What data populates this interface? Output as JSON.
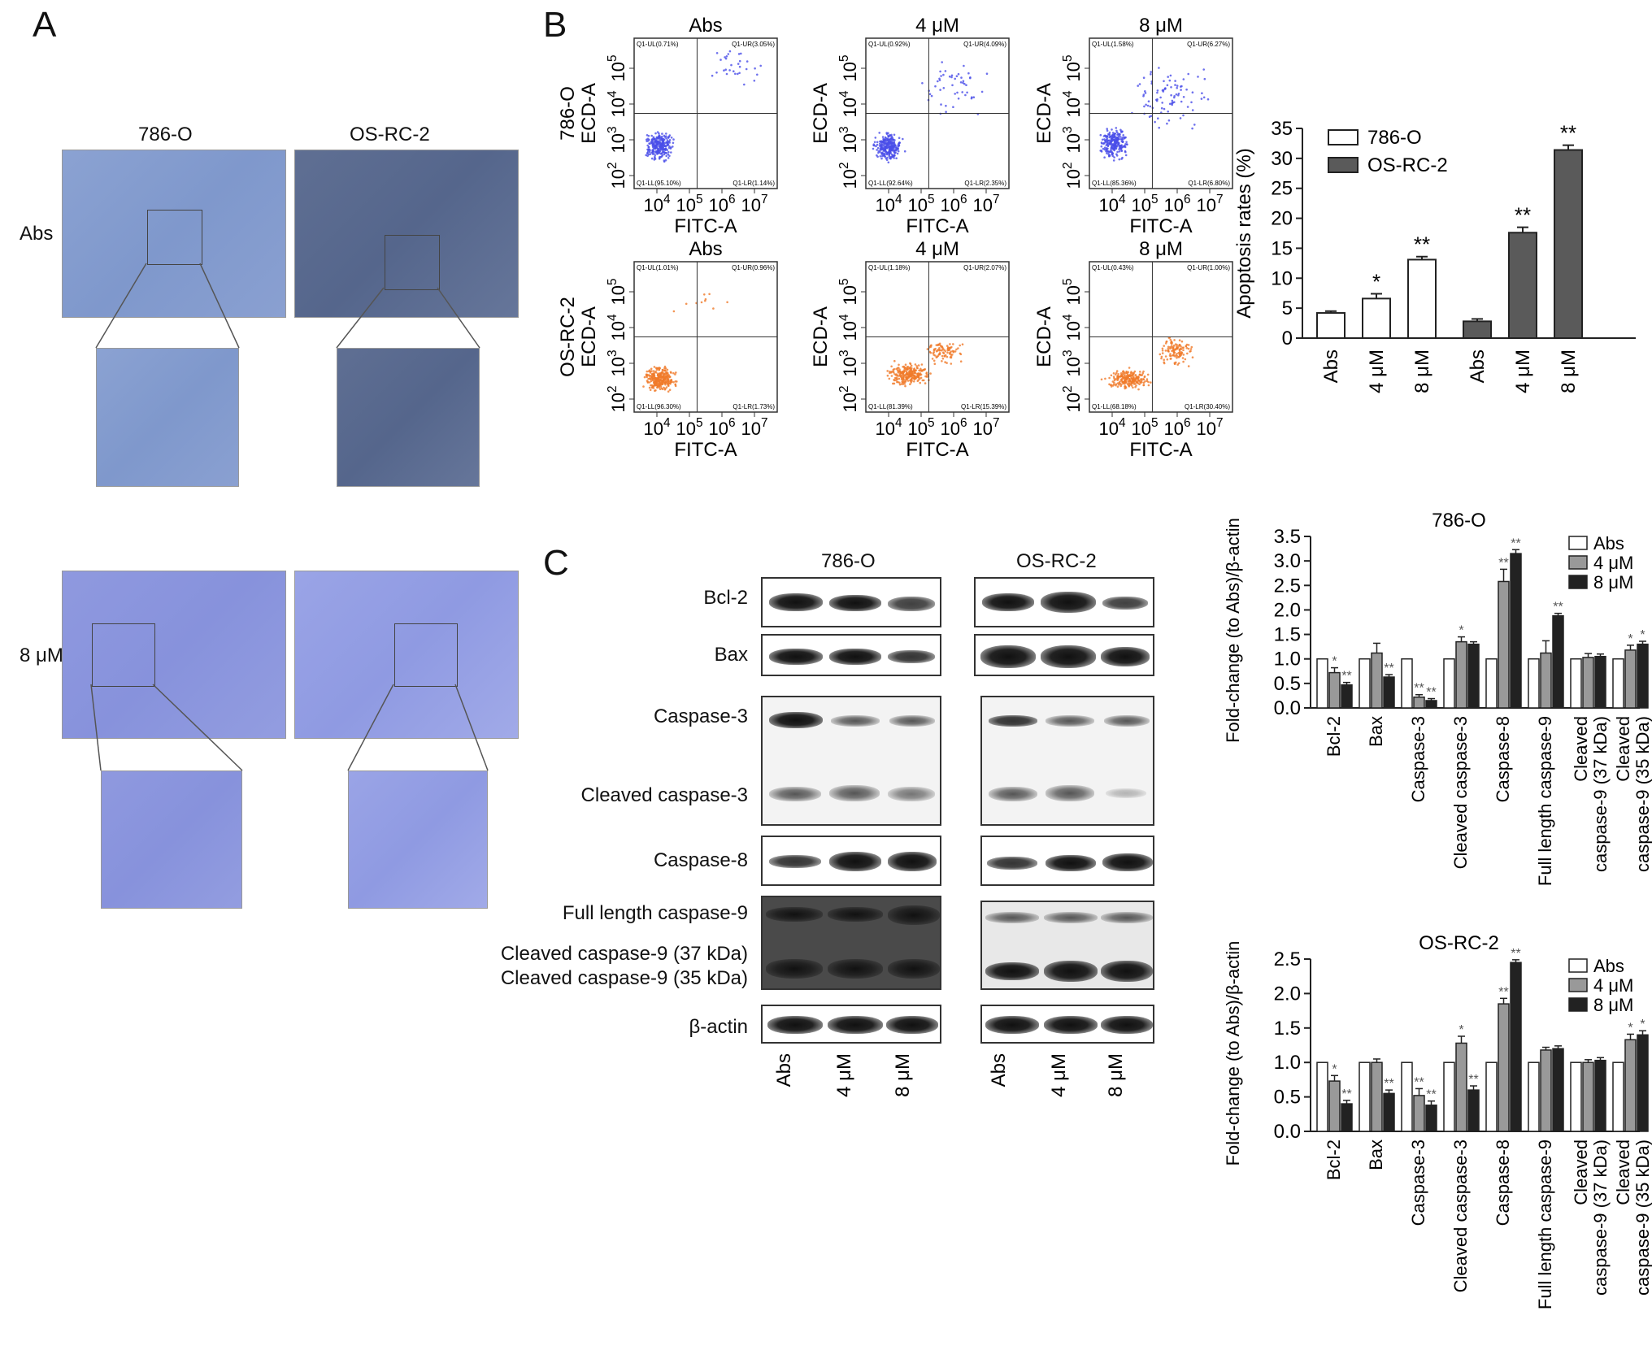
{
  "panels": {
    "a": "A",
    "b": "B",
    "c": "C"
  },
  "panel_a": {
    "col_786": "786-O",
    "col_osrc": "OS-RC-2",
    "row_abs": "Abs",
    "row_8um": "8 μM"
  },
  "flow": {
    "col_titles": [
      "Abs",
      "4 μM",
      "8 μM"
    ],
    "row_labels": [
      "786-O",
      "OS-RC-2"
    ],
    "y_axis_label": "ECD-A",
    "x_axis_label": "FITC-A",
    "x_ticks": [
      "10^4",
      "10^5",
      "10^6",
      "10^7"
    ],
    "y_ticks": [
      "10^2",
      "10^3",
      "10^4",
      "10^5"
    ],
    "plots": [
      {
        "row": 0,
        "col": 0,
        "color": "#4a4ee8",
        "UL": "Q1-UL(0.71%)",
        "UR": "Q1-UR(3.05%)",
        "LL": "Q1-LL(95.10%)",
        "LR": "Q1-LR(1.14%)"
      },
      {
        "row": 0,
        "col": 1,
        "color": "#4a4ee8",
        "UL": "Q1-UL(0.92%)",
        "UR": "Q1-UR(4.09%)",
        "LL": "Q1-LL(92.64%)",
        "LR": "Q1-LR(2.35%)"
      },
      {
        "row": 0,
        "col": 2,
        "color": "#4a4ee8",
        "UL": "Q1-UL(1.58%)",
        "UR": "Q1-UR(6.27%)",
        "LL": "Q1-LL(85.36%)",
        "LR": "Q1-LR(6.80%)"
      },
      {
        "row": 1,
        "col": 0,
        "color": "#f07a2a",
        "UL": "Q1-UL(1.01%)",
        "UR": "Q1-UR(0.96%)",
        "LL": "Q1-LL(96.30%)",
        "LR": "Q1-LR(1.73%)"
      },
      {
        "row": 1,
        "col": 1,
        "color": "#f07a2a",
        "UL": "Q1-UL(1.18%)",
        "UR": "Q1-UR(2.07%)",
        "LL": "Q1-LL(81.39%)",
        "LR": "Q1-LR(15.39%)"
      },
      {
        "row": 1,
        "col": 2,
        "color": "#f07a2a",
        "UL": "Q1-UL(0.43%)",
        "UR": "Q1-UR(1.00%)",
        "LL": "Q1-LL(68.18%)",
        "LR": "Q1-LR(30.40%)"
      }
    ]
  },
  "blot": {
    "group_786": "786-O",
    "group_osrc": "OS-RC-2",
    "labels": [
      "Bcl-2",
      "Bax",
      "Caspase-3",
      "Cleaved caspase-3",
      "Caspase-8",
      "Full length caspase-9",
      "Cleaved caspase-9 (37 kDa)",
      "Cleaved caspase-9 (35 kDa)",
      "β-actin"
    ],
    "lanes": [
      "Abs",
      "4 μM",
      "8 μM"
    ]
  },
  "chart_data": [
    {
      "type": "bar",
      "ylabel": "Apoptosis rates (%)",
      "ylim": [
        0,
        35
      ],
      "yticks": [
        0,
        5,
        10,
        15,
        20,
        25,
        30,
        35
      ],
      "groups": [
        {
          "name": "786-O",
          "color": "#ffffff",
          "categories": [
            "Abs",
            "4 μM",
            "8 μM"
          ],
          "values": [
            4.2,
            6.6,
            13.1
          ],
          "errors": [
            0.3,
            0.8,
            0.5
          ],
          "sig": [
            "",
            "*",
            "**"
          ]
        },
        {
          "name": "OS-RC-2",
          "color": "#5a5a5a",
          "categories": [
            "Abs",
            "4 μM",
            "8 μM"
          ],
          "values": [
            2.8,
            17.6,
            31.4
          ],
          "errors": [
            0.4,
            0.9,
            0.8
          ],
          "sig": [
            "",
            "**",
            "**"
          ]
        }
      ],
      "legend": [
        "786-O",
        "OS-RC-2"
      ],
      "legend_position": "top-left"
    },
    {
      "type": "bar",
      "title": "786-O",
      "ylabel": "Fold-change (to Abs)/β-actin",
      "ylim": [
        0,
        3.5
      ],
      "yticks": [
        "0.0",
        "0.5",
        "1.0",
        "1.5",
        "2.0",
        "2.5",
        "3.0",
        "3.5"
      ],
      "categories": [
        "Bcl-2",
        "Bax",
        "Caspase-3",
        "Cleaved caspase-3",
        "Caspase-8",
        "Full length caspase-9",
        "Cleaved caspase-9 (37 kDa)",
        "Cleaved caspase-9 (35 kDa)"
      ],
      "series": [
        {
          "name": "Abs",
          "color": "#ffffff",
          "values": [
            1.0,
            1.0,
            1.0,
            1.0,
            1.0,
            1.0,
            1.0,
            1.0
          ],
          "errors": [
            0,
            0,
            0,
            0,
            0,
            0,
            0,
            0
          ],
          "sig": [
            "",
            "",
            "",
            "",
            "",
            "",
            "",
            ""
          ]
        },
        {
          "name": "4 μM",
          "color": "#999999",
          "values": [
            0.72,
            1.12,
            0.22,
            1.35,
            2.58,
            1.12,
            1.03,
            1.18
          ],
          "errors": [
            0.1,
            0.2,
            0.05,
            0.1,
            0.25,
            0.25,
            0.08,
            0.1
          ],
          "sig": [
            "*",
            "",
            "**",
            "*",
            "**",
            "",
            "",
            "*"
          ]
        },
        {
          "name": "8 μM",
          "color": "#222222",
          "values": [
            0.47,
            0.63,
            0.15,
            1.3,
            3.15,
            1.88,
            1.05,
            1.3
          ],
          "errors": [
            0.05,
            0.05,
            0.04,
            0.05,
            0.08,
            0.05,
            0.05,
            0.06
          ],
          "sig": [
            "**",
            "**",
            "**",
            "",
            "**",
            "**",
            "",
            "*"
          ]
        }
      ],
      "legend_position": "top-right"
    },
    {
      "type": "bar",
      "title": "OS-RC-2",
      "ylabel": "Fold-change (to Abs)/β-actin",
      "ylim": [
        0,
        2.5
      ],
      "yticks": [
        "0.0",
        "0.5",
        "1.0",
        "1.5",
        "2.0",
        "2.5"
      ],
      "categories": [
        "Bcl-2",
        "Bax",
        "Caspase-3",
        "Cleaved caspase-3",
        "Caspase-8",
        "Full length caspase-9",
        "Cleaved caspase-9 (37 kDa)",
        "Cleaved caspase-9 (35 kDa)"
      ],
      "series": [
        {
          "name": "Abs",
          "color": "#ffffff",
          "values": [
            1.0,
            1.0,
            1.0,
            1.0,
            1.0,
            1.0,
            1.0,
            1.0
          ],
          "errors": [
            0,
            0,
            0,
            0,
            0,
            0,
            0,
            0
          ],
          "sig": [
            "",
            "",
            "",
            "",
            "",
            "",
            "",
            ""
          ]
        },
        {
          "name": "4 μM",
          "color": "#999999",
          "values": [
            0.73,
            1.0,
            0.52,
            1.28,
            1.85,
            1.18,
            1.0,
            1.33
          ],
          "errors": [
            0.08,
            0.05,
            0.1,
            0.1,
            0.08,
            0.04,
            0.04,
            0.08
          ],
          "sig": [
            "*",
            "",
            "**",
            "*",
            "**",
            "",
            "",
            "*"
          ]
        },
        {
          "name": "8 μM",
          "color": "#222222",
          "values": [
            0.4,
            0.55,
            0.38,
            0.6,
            2.45,
            1.2,
            1.03,
            1.4
          ],
          "errors": [
            0.05,
            0.05,
            0.06,
            0.06,
            0.04,
            0.04,
            0.04,
            0.06
          ],
          "sig": [
            "**",
            "**",
            "**",
            "**",
            "**",
            "",
            "",
            "*"
          ]
        }
      ],
      "legend_position": "top-right"
    }
  ]
}
